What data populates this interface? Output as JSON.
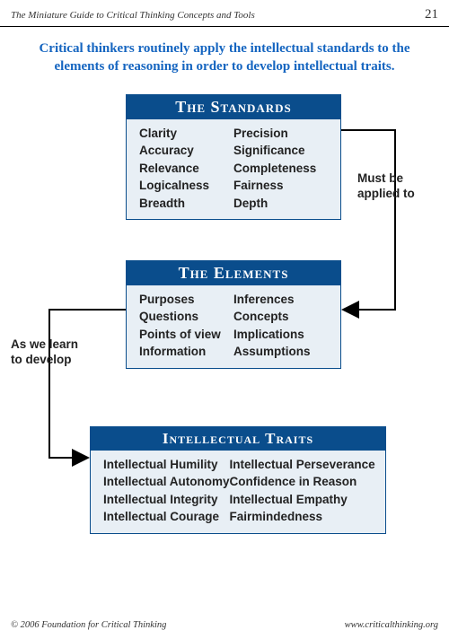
{
  "header": {
    "title": "The Miniature Guide to Critical Thinking Concepts and Tools",
    "page": "21"
  },
  "intro": "Critical thinkers routinely apply the intellectual standards to the elements of reasoning in order to develop intellectual traits.",
  "boxes": {
    "standards": {
      "title": "The Standards",
      "left": [
        "Clarity",
        "Accuracy",
        "Relevance",
        "Logicalness",
        "Breadth"
      ],
      "right": [
        "Precision",
        "Significance",
        "Completeness",
        "Fairness",
        "Depth"
      ]
    },
    "elements": {
      "title": "The Elements",
      "left": [
        "Purposes",
        "Questions",
        "Points of view",
        "Information"
      ],
      "right": [
        "Inferences",
        "Concepts",
        "Implications",
        "Assumptions"
      ]
    },
    "traits": {
      "title": "Intellectual Traits",
      "left": [
        "Intellectual Humility",
        "Intellectual Autonomy",
        "Intellectual Integrity",
        "Intellectual Courage"
      ],
      "right": [
        "Intellectual Perseverance",
        "Confidence in Reason",
        "Intellectual Empathy",
        "Fairmindedness"
      ]
    }
  },
  "connectors": {
    "first": "Must be\napplied to",
    "second": "As we learn\nto develop"
  },
  "footer": {
    "copyright": "© 2006 Foundation for Critical Thinking",
    "url": "www.criticalthinking.org"
  },
  "style": {
    "accent": "#0a4d8c",
    "box_bg": "#e8eff5",
    "intro_color": "#1565c0",
    "arrow_stroke": "#000000"
  }
}
